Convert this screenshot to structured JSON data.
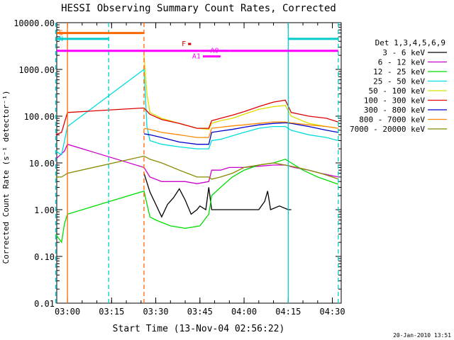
{
  "chart_data": {
    "type": "line",
    "title": "HESSI Observing Summary Count Rates, Corrected",
    "xlabel": "Start Time (13-Nov-04 02:56:22)",
    "ylabel": "Corrected Count Rate (s⁻¹ detector⁻¹)",
    "yscale": "log",
    "ylim": [
      0.01,
      10000
    ],
    "xlim": [
      "02:56:22",
      "04:33:00"
    ],
    "grid": false,
    "legend_position": "right",
    "yticks": [
      "10000.00",
      "1000.00",
      "100.00",
      "10.00",
      "1.00",
      "0.10",
      "0.01"
    ],
    "xticks": [
      "03:00",
      "03:15",
      "03:30",
      "03:45",
      "04:00",
      "04:15",
      "04:30"
    ],
    "legend_title": "Det 1,3,4,5,6,9",
    "series": [
      {
        "name": "3 - 6 keV",
        "color": "#000000",
        "points": [
          [
            "03:26",
            6
          ],
          [
            "03:28",
            2.4
          ],
          [
            "03:30",
            1.3
          ],
          [
            "03:32",
            0.7
          ],
          [
            "03:34",
            1.3
          ],
          [
            "03:36",
            1.8
          ],
          [
            "03:38",
            2.8
          ],
          [
            "03:40",
            1.6
          ],
          [
            "03:42",
            0.8
          ],
          [
            "03:44",
            1.0
          ],
          [
            "03:45",
            1.2
          ],
          [
            "03:47",
            1.0
          ],
          [
            "03:48",
            3.0
          ],
          [
            "03:49",
            1.0
          ],
          [
            "03:55",
            1.0
          ],
          [
            "04:05",
            1.0
          ],
          [
            "04:07",
            1.5
          ],
          [
            "04:08",
            2.5
          ],
          [
            "04:09",
            1.0
          ],
          [
            "04:12",
            1.2
          ],
          [
            "04:15",
            1.0
          ],
          [
            "04:16",
            1.0
          ]
        ]
      },
      {
        "name": "6 - 12 keV",
        "color": "#cc00cc",
        "points": [
          [
            "02:56",
            12
          ],
          [
            "02:59",
            18
          ],
          [
            "03:00",
            25
          ],
          [
            "03:26",
            8
          ],
          [
            "03:28",
            5
          ],
          [
            "03:32",
            4
          ],
          [
            "03:36",
            4
          ],
          [
            "03:40",
            4
          ],
          [
            "03:44",
            3.6
          ],
          [
            "03:48",
            4
          ],
          [
            "03:49",
            7
          ],
          [
            "03:52",
            7
          ],
          [
            "03:55",
            8
          ],
          [
            "04:00",
            8
          ],
          [
            "04:05",
            8.5
          ],
          [
            "04:10",
            9
          ],
          [
            "04:14",
            9
          ],
          [
            "04:17",
            8
          ],
          [
            "04:22",
            7
          ],
          [
            "04:26",
            6
          ],
          [
            "04:32",
            5
          ]
        ]
      },
      {
        "name": "12 - 25 keV",
        "color": "#00dd00",
        "points": [
          [
            "02:56",
            0.3
          ],
          [
            "02:58",
            0.2
          ],
          [
            "02:59",
            0.5
          ],
          [
            "03:00",
            0.8
          ],
          [
            "03:26",
            2.5
          ],
          [
            "03:28",
            0.7
          ],
          [
            "03:30",
            0.6
          ],
          [
            "03:35",
            0.45
          ],
          [
            "03:40",
            0.4
          ],
          [
            "03:45",
            0.45
          ],
          [
            "03:48",
            0.8
          ],
          [
            "03:49",
            2.0
          ],
          [
            "03:52",
            3.0
          ],
          [
            "03:56",
            5
          ],
          [
            "04:00",
            7
          ],
          [
            "04:05",
            9
          ],
          [
            "04:10",
            10
          ],
          [
            "04:14",
            12
          ],
          [
            "04:16",
            10
          ],
          [
            "04:20",
            7
          ],
          [
            "04:25",
            5
          ],
          [
            "04:32",
            3.5
          ]
        ]
      },
      {
        "name": "25 - 50 keV",
        "color": "#00dddd",
        "points": [
          [
            "02:56",
            18
          ],
          [
            "02:58",
            15
          ],
          [
            "03:00",
            60
          ],
          [
            "03:26",
            1000
          ],
          [
            "03:27",
            60
          ],
          [
            "03:28",
            30
          ],
          [
            "03:32",
            25
          ],
          [
            "03:38",
            22
          ],
          [
            "03:44",
            20
          ],
          [
            "03:48",
            20
          ],
          [
            "03:49",
            30
          ],
          [
            "03:52",
            32
          ],
          [
            "03:56",
            38
          ],
          [
            "04:00",
            45
          ],
          [
            "04:05",
            55
          ],
          [
            "04:10",
            60
          ],
          [
            "04:14",
            60
          ],
          [
            "04:16",
            50
          ],
          [
            "04:22",
            40
          ],
          [
            "04:28",
            35
          ],
          [
            "04:32",
            30
          ]
        ]
      },
      {
        "name": "50 - 100 keV",
        "color": "#dddd00",
        "points": [
          [
            "03:26",
            2000
          ],
          [
            "03:27",
            300
          ],
          [
            "03:28",
            120
          ],
          [
            "03:32",
            90
          ],
          [
            "03:38",
            70
          ],
          [
            "03:44",
            55
          ],
          [
            "03:48",
            52
          ],
          [
            "03:49",
            70
          ],
          [
            "03:52",
            80
          ],
          [
            "03:56",
            90
          ],
          [
            "04:00",
            110
          ],
          [
            "04:05",
            140
          ],
          [
            "04:10",
            160
          ],
          [
            "04:14",
            170
          ],
          [
            "04:16",
            100
          ],
          [
            "04:22",
            70
          ],
          [
            "04:28",
            60
          ],
          [
            "04:32",
            55
          ]
        ]
      },
      {
        "name": "100 - 300 keV",
        "color": "#dd0000",
        "points": [
          [
            "02:56",
            40
          ],
          [
            "02:58",
            45
          ],
          [
            "03:00",
            120
          ],
          [
            "03:26",
            150
          ],
          [
            "03:28",
            110
          ],
          [
            "03:32",
            85
          ],
          [
            "03:38",
            70
          ],
          [
            "03:44",
            55
          ],
          [
            "03:48",
            55
          ],
          [
            "03:49",
            80
          ],
          [
            "03:52",
            90
          ],
          [
            "03:56",
            105
          ],
          [
            "04:00",
            125
          ],
          [
            "04:05",
            160
          ],
          [
            "04:10",
            200
          ],
          [
            "04:14",
            220
          ],
          [
            "04:16",
            120
          ],
          [
            "04:22",
            100
          ],
          [
            "04:28",
            90
          ],
          [
            "04:32",
            75
          ]
        ]
      },
      {
        "name": "300 - 800 keV",
        "color": "#0000cc",
        "points": [
          [
            "03:26",
            42
          ],
          [
            "03:28",
            40
          ],
          [
            "03:32",
            35
          ],
          [
            "03:38",
            28
          ],
          [
            "03:44",
            25
          ],
          [
            "03:48",
            25
          ],
          [
            "03:49",
            45
          ],
          [
            "03:52",
            48
          ],
          [
            "03:56",
            52
          ],
          [
            "04:00",
            58
          ],
          [
            "04:05",
            65
          ],
          [
            "04:10",
            70
          ],
          [
            "04:14",
            72
          ],
          [
            "04:16",
            70
          ],
          [
            "04:22",
            60
          ],
          [
            "04:28",
            50
          ],
          [
            "04:32",
            45
          ]
        ]
      },
      {
        "name": "800 - 7000 keV",
        "color": "#ff8800",
        "points": [
          [
            "03:26",
            55
          ],
          [
            "03:28",
            52
          ],
          [
            "03:32",
            45
          ],
          [
            "03:38",
            40
          ],
          [
            "03:44",
            35
          ],
          [
            "03:48",
            35
          ],
          [
            "03:49",
            55
          ],
          [
            "03:52",
            58
          ],
          [
            "03:56",
            62
          ],
          [
            "04:00",
            65
          ],
          [
            "04:05",
            70
          ],
          [
            "04:10",
            75
          ],
          [
            "04:14",
            75
          ],
          [
            "04:16",
            72
          ],
          [
            "04:22",
            65
          ],
          [
            "04:28",
            60
          ],
          [
            "04:32",
            55
          ]
        ]
      },
      {
        "name": "7000 - 20000 keV",
        "color": "#888800",
        "points": [
          [
            "02:56",
            5
          ],
          [
            "02:58",
            5
          ],
          [
            "03:00",
            6
          ],
          [
            "03:26",
            14
          ],
          [
            "03:28",
            12
          ],
          [
            "03:32",
            10
          ],
          [
            "03:38",
            7
          ],
          [
            "03:44",
            5
          ],
          [
            "03:48",
            5
          ],
          [
            "03:49",
            4.5
          ],
          [
            "03:52",
            5
          ],
          [
            "03:56",
            6
          ],
          [
            "04:00",
            8
          ],
          [
            "04:05",
            9
          ],
          [
            "04:10",
            10
          ],
          [
            "04:14",
            9
          ],
          [
            "04:18",
            8
          ],
          [
            "04:22",
            7
          ],
          [
            "04:26",
            6
          ],
          [
            "04:30",
            5
          ],
          [
            "04:32",
            4.5
          ]
        ]
      }
    ],
    "annotation_bars": [
      {
        "label": "S",
        "color": "#ff6600",
        "x_start": "02:56",
        "x_end": "03:26",
        "y": 6000
      },
      {
        "label": "N",
        "color": "#00cccc",
        "x_start": "02:56",
        "x_end": "03:14",
        "y": 4500
      },
      {
        "label": "",
        "color": "#00cccc",
        "x_start": "04:15",
        "x_end": "04:32",
        "y": 4500
      },
      {
        "label": "",
        "color": "#ff00ff",
        "x_start": "02:56",
        "x_end": "03:45",
        "y": 2500
      },
      {
        "label": "",
        "color": "#ff00ff",
        "x_start": "03:55",
        "x_end": "04:32",
        "y": 2500
      },
      {
        "label": "A0",
        "color": "#ff00ff",
        "x_start": "03:45",
        "x_end": "03:55",
        "y": 2500
      },
      {
        "label": "F",
        "color": "#cc0000",
        "x_start": "03:41",
        "x_end": "03:42",
        "y": 3500
      },
      {
        "label": "A1",
        "color": "#ff00ff",
        "x_start": "03:46",
        "x_end": "03:52",
        "y": 1900
      }
    ],
    "vertical_lines": [
      {
        "x": "02:56",
        "color": "#00cccc",
        "style": "dashed"
      },
      {
        "x": "03:00",
        "color": "#ff6600",
        "style": "solid"
      },
      {
        "x": "03:14",
        "color": "#00cccc",
        "style": "dashed"
      },
      {
        "x": "03:26",
        "color": "#ff6600",
        "style": "dashed"
      },
      {
        "x": "04:15",
        "color": "#00cccc",
        "style": "solid"
      },
      {
        "x": "04:32",
        "color": "#00cccc",
        "style": "dashed"
      }
    ]
  },
  "footer": {
    "timestamp": "20-Jan-2010 13:51"
  }
}
